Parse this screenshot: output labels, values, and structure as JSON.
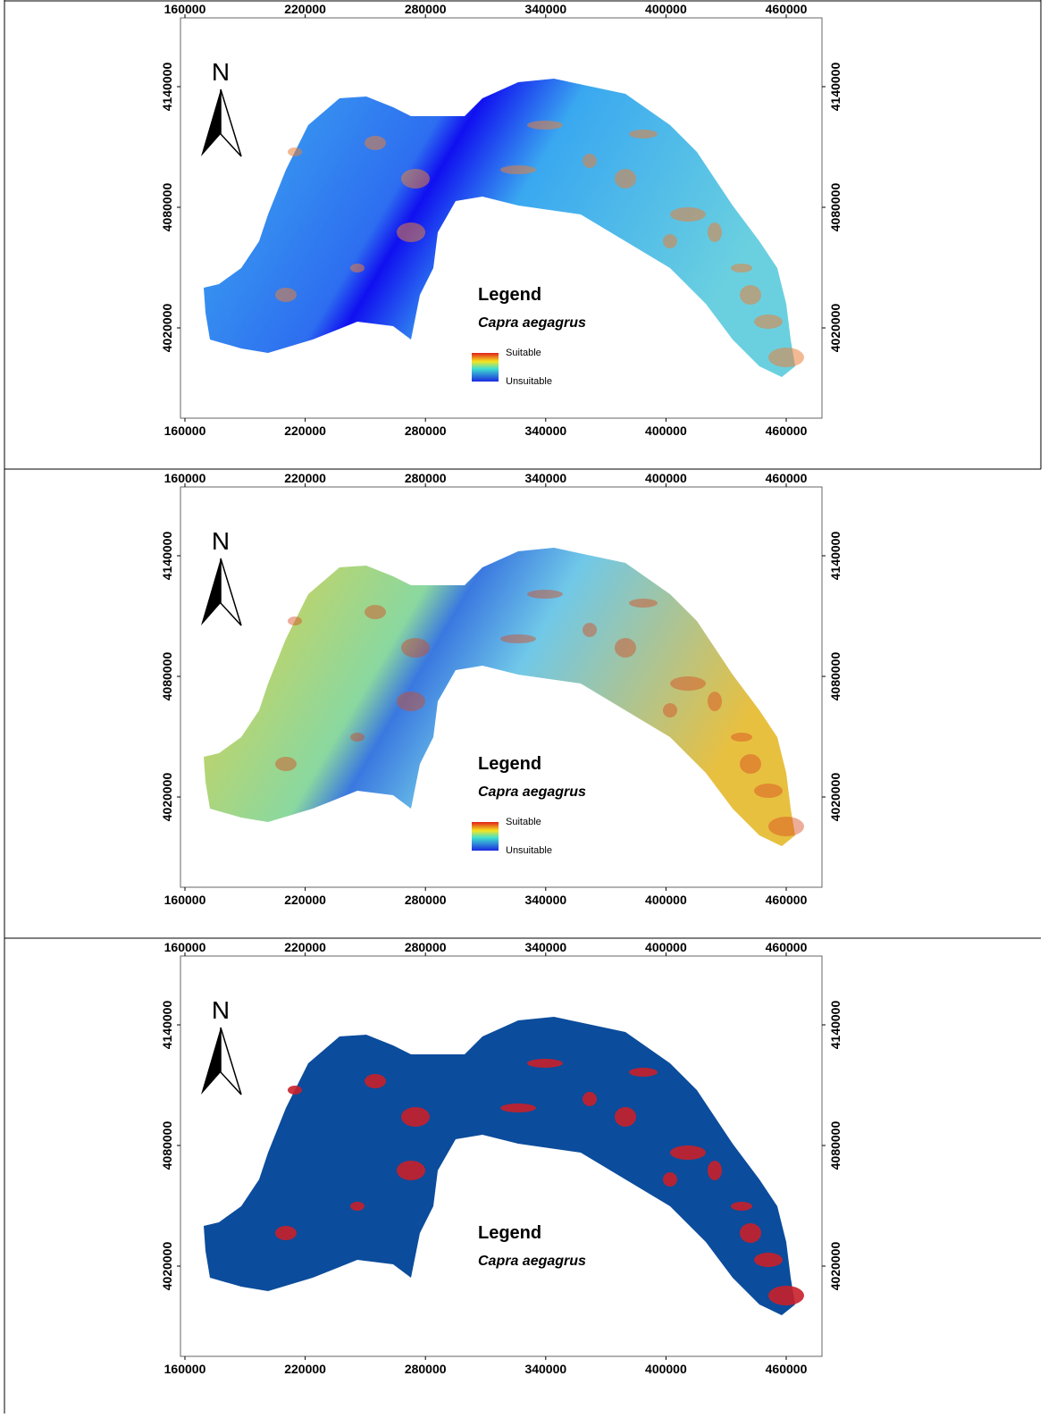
{
  "panels": [
    {
      "x_ticks_top": [
        160000,
        220000,
        280000,
        340000,
        400000,
        460000
      ],
      "x_ticks_bottom": [
        160000,
        220000,
        280000,
        340000,
        400000,
        460000
      ],
      "y_ticks_left": [
        4020000,
        4080000,
        4140000
      ],
      "y_ticks_right": [
        4020000,
        4080000,
        4140000
      ],
      "north": "N",
      "legend": {
        "title": "Legend",
        "species": "Capra aegagrus",
        "high": "Suitable",
        "low": "Unsuitable"
      }
    },
    {
      "x_ticks_top": [
        160000,
        220000,
        280000,
        340000,
        400000,
        460000
      ],
      "x_ticks_bottom": [
        160000,
        220000,
        280000,
        340000,
        400000,
        460000
      ],
      "y_ticks_left": [
        4020000,
        4080000,
        4140000
      ],
      "y_ticks_right": [
        4020000,
        4080000,
        4140000
      ],
      "north": "N",
      "legend": {
        "title": "Legend",
        "species": "Capra aegagrus",
        "high": "Suitable",
        "low": "Unsuitable"
      }
    },
    {
      "x_ticks_top": [
        160000,
        220000,
        280000,
        340000,
        400000,
        460000
      ],
      "x_ticks_bottom": [
        160000,
        220000,
        280000,
        340000,
        400000,
        460000
      ],
      "y_ticks_left": [
        4020000,
        4080000,
        4140000
      ],
      "y_ticks_right": [
        4020000,
        4080000,
        4140000
      ],
      "north": "N",
      "legend": {
        "title": "Legend",
        "species": "Capra aegagrus"
      }
    }
  ]
}
